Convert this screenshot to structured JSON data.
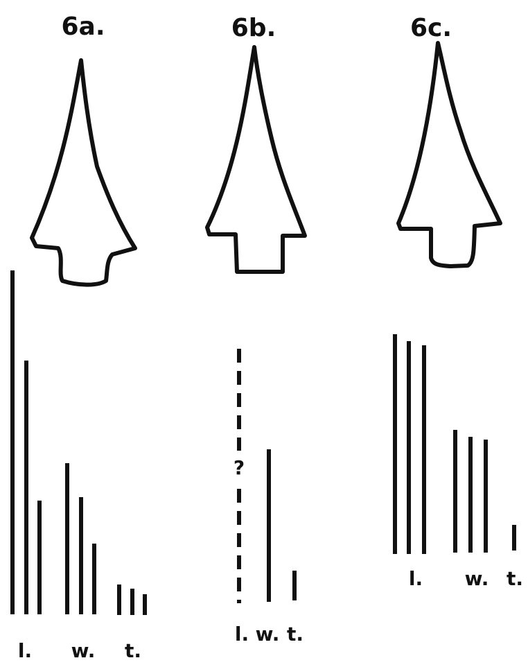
{
  "panels": [
    {
      "label": "6a.",
      "measures": [
        "l.",
        "w.",
        "t."
      ]
    },
    {
      "label": "6b.",
      "measures": [
        "l.",
        "w.",
        "t."
      ],
      "note": "?"
    },
    {
      "label": "6c.",
      "measures": [
        "l.",
        "w.",
        "t."
      ]
    }
  ]
}
